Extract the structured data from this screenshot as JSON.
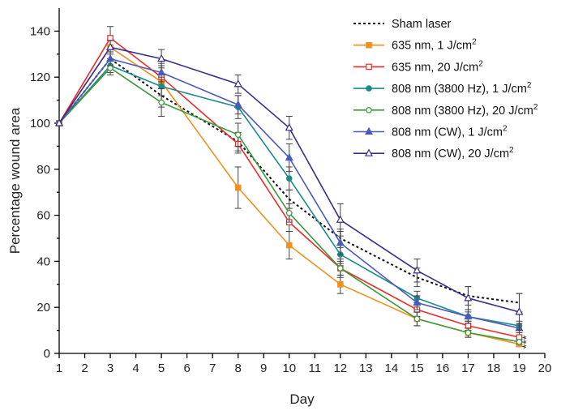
{
  "chart_data": {
    "type": "line",
    "title": "",
    "xlabel": "Day",
    "ylabel": "Percentage wound area",
    "xlim": [
      1,
      20
    ],
    "ylim": [
      0,
      150
    ],
    "xticks": [
      1,
      2,
      3,
      4,
      5,
      6,
      7,
      8,
      9,
      10,
      11,
      12,
      13,
      14,
      15,
      16,
      17,
      18,
      19,
      20
    ],
    "yticks": [
      0,
      20,
      40,
      60,
      80,
      100,
      120,
      140
    ],
    "grid": false,
    "legend_position": "top-right",
    "x": [
      1,
      3,
      5,
      8,
      10,
      12,
      15,
      17,
      19
    ],
    "significance_marks": "***",
    "series": [
      {
        "name": "Sham laser",
        "color": "#111111",
        "dashed": true,
        "marker": "none",
        "values": [
          100,
          128,
          112,
          92,
          67,
          50,
          33,
          25,
          22
        ],
        "errors": [
          0,
          3,
          5,
          4,
          4,
          4,
          4,
          4,
          4
        ]
      },
      {
        "name": "635 nm, 1 J/cm",
        "name_sup": "2",
        "color": "#f0901e",
        "dashed": false,
        "marker": "square-filled",
        "values": [
          100,
          133,
          118,
          72,
          47,
          30,
          15,
          9,
          4
        ],
        "errors": [
          0,
          0,
          0,
          9,
          6,
          4,
          3,
          2,
          1
        ]
      },
      {
        "name": "635 nm, 20 J/cm",
        "name_sup": "2",
        "color": "#ee2a2a",
        "dashed": false,
        "marker": "square-open",
        "values": [
          100,
          137,
          120,
          91,
          57,
          37,
          19,
          12,
          7
        ],
        "errors": [
          0,
          5,
          5,
          4,
          4,
          3,
          3,
          2,
          2
        ]
      },
      {
        "name": "808 nm (3800 Hz), 1 J/cm",
        "name_sup": "2",
        "color": "#1b8a8a",
        "dashed": false,
        "marker": "circle-filled",
        "values": [
          100,
          125,
          116,
          107,
          76,
          43,
          24,
          16,
          12
        ],
        "errors": [
          0,
          3,
          4,
          5,
          5,
          4,
          3,
          2,
          2
        ]
      },
      {
        "name": "808 nm (3800 Hz), 20 J/cm",
        "name_sup": "2",
        "color": "#3a9a3a",
        "dashed": false,
        "marker": "circle-open",
        "values": [
          100,
          124,
          109,
          95,
          61,
          37,
          15,
          9,
          5
        ],
        "errors": [
          0,
          3,
          6,
          5,
          4,
          4,
          3,
          2,
          1
        ]
      },
      {
        "name": "808 nm (CW), 1 J/cm",
        "name_sup": "2",
        "color": "#4a5ab8",
        "dashed": false,
        "marker": "triangle-filled",
        "values": [
          100,
          128,
          122,
          108,
          85,
          48,
          22,
          16,
          11
        ],
        "errors": [
          0,
          3,
          4,
          4,
          6,
          5,
          3,
          3,
          2
        ]
      },
      {
        "name": "808 nm (CW), 20 J/cm",
        "name_sup": "2",
        "color": "#3a2f8a",
        "dashed": false,
        "marker": "triangle-open",
        "values": [
          100,
          133,
          128,
          117,
          98,
          58,
          36,
          24,
          18
        ],
        "errors": [
          0,
          3,
          4,
          4,
          5,
          7,
          5,
          5,
          8
        ]
      }
    ]
  }
}
